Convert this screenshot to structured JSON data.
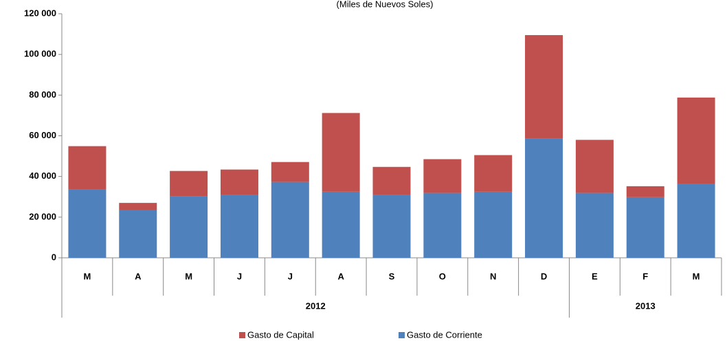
{
  "chart_data": {
    "type": "stacked_bar",
    "subtitle": "(Miles de Nuevos Soles)",
    "categories": [
      "M",
      "A",
      "M",
      "J",
      "J",
      "A",
      "S",
      "O",
      "N",
      "D",
      "E",
      "F",
      "M"
    ],
    "groups": [
      {
        "label": "2012",
        "span": 10
      },
      {
        "label": "2013",
        "span": 3
      }
    ],
    "series": [
      {
        "name": "Gasto de Capital",
        "color": "#c0504d",
        "values": [
          21300,
          3500,
          12500,
          12600,
          9800,
          38700,
          13900,
          16600,
          18000,
          50900,
          26100,
          5400,
          42600
        ]
      },
      {
        "name": "Gasto de Corriente",
        "color": "#4f81bd",
        "values": [
          33600,
          23500,
          30200,
          30800,
          37300,
          32500,
          30800,
          31900,
          32500,
          58600,
          31900,
          29800,
          36200
        ]
      }
    ],
    "ylim": [
      0,
      120000
    ],
    "yticks": [
      0,
      {
        "value": 20000,
        "label": "20 000"
      },
      {
        "value": 40000,
        "label": "40 000"
      },
      {
        "value": 60000,
        "label": "60 000"
      },
      {
        "value": 80000,
        "label": "80 000"
      },
      {
        "value": 100000,
        "label": "100 000"
      },
      {
        "value": 120000,
        "label": "120 000"
      }
    ],
    "grid": false,
    "legend": "bottom"
  }
}
